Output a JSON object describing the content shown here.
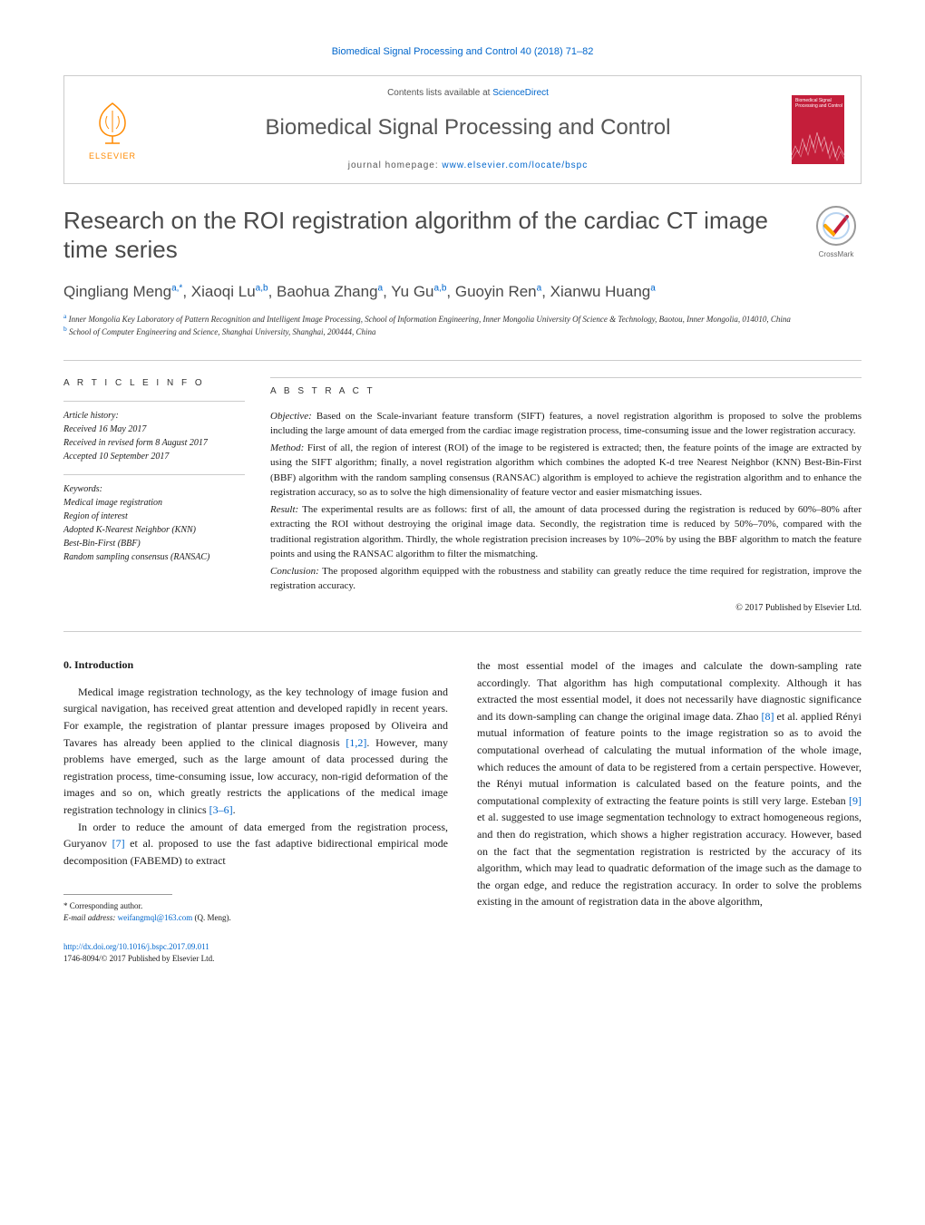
{
  "journal_citation": "Biomedical Signal Processing and Control 40 (2018) 71–82",
  "masthead": {
    "contents_prefix": "Contents lists available at ",
    "contents_link": "ScienceDirect",
    "journal_name": "Biomedical Signal Processing and Control",
    "homepage_prefix": "journal homepage: ",
    "homepage_url": "www.elsevier.com/locate/bspc",
    "elsevier_label": "ELSEVIER",
    "cover_text": "Biomedical Signal Processing and Control"
  },
  "crossmark_label": "CrossMark",
  "title": "Research on the ROI registration algorithm of the cardiac CT image time series",
  "authors": [
    {
      "name": "Qingliang Meng",
      "aff": "a,*"
    },
    {
      "name": "Xiaoqi Lu",
      "aff": "a,b"
    },
    {
      "name": "Baohua Zhang",
      "aff": "a"
    },
    {
      "name": "Yu Gu",
      "aff": "a,b"
    },
    {
      "name": "Guoyin Ren",
      "aff": "a"
    },
    {
      "name": "Xianwu Huang",
      "aff": "a"
    }
  ],
  "affiliations": {
    "a": "Inner Mongolia Key Laboratory of Pattern Recognition and Intelligent Image Processing, School of Information Engineering, Inner Mongolia University Of Science & Technology, Baotou, Inner Mongolia, 014010, China",
    "b": "School of Computer Engineering and Science, Shanghai University, Shanghai, 200444, China"
  },
  "article_info": {
    "heading": "A R T I C L E   I N F O",
    "history_label": "Article history:",
    "received": "Received 16 May 2017",
    "revised": "Received in revised form 8 August 2017",
    "accepted": "Accepted 10 September 2017",
    "keywords_label": "Keywords:",
    "keywords": [
      "Medical image registration",
      "Region of interest",
      "Adopted K-Nearest Neighbor (KNN)",
      "Best-Bin-First (BBF)",
      "Random sampling consensus (RANSAC)"
    ]
  },
  "abstract": {
    "heading": "A B S T R A C T",
    "objective_label": "Objective:",
    "objective": "Based on the Scale-invariant feature transform (SIFT) features, a novel registration algorithm is proposed to solve the problems including the large amount of data emerged from the cardiac image registration process, time-consuming issue and the lower registration accuracy.",
    "method_label": "Method:",
    "method": "First of all, the region of interest (ROI) of the image to be registered is extracted; then, the feature points of the image are extracted by using the SIFT algorithm; finally, a novel registration algorithm which combines the adopted K-d tree Nearest Neighbor (KNN) Best-Bin-First (BBF) algorithm with the random sampling consensus (RANSAC) algorithm is employed to achieve the registration algorithm and to enhance the registration accuracy, so as to solve the high dimensionality of feature vector and easier mismatching issues.",
    "result_label": "Result:",
    "result": "The experimental results are as follows: first of all, the amount of data processed during the registration is reduced by 60%–80% after extracting the ROI without destroying the original image data. Secondly, the registration time is reduced by 50%–70%, compared with the traditional registration algorithm. Thirdly, the whole registration precision increases by 10%–20% by using the BBF algorithm to match the feature points and using the RANSAC algorithm to filter the mismatching.",
    "conclusion_label": "Conclusion:",
    "conclusion": "The proposed algorithm equipped with the robustness and stability can greatly reduce the time required for registration, improve the registration accuracy.",
    "copyright": "© 2017 Published by Elsevier Ltd."
  },
  "body": {
    "section_heading": "0. Introduction",
    "col1_p1": "Medical image registration technology, as the key technology of image fusion and surgical navigation, has received great attention and developed rapidly in recent years. For example, the registration of plantar pressure images proposed by Oliveira and Tavares has already been applied to the clinical diagnosis ",
    "ref1": "[1,2]",
    "col1_p1b": ". However, many problems have emerged, such as the large amount of data processed during the registration process, time-consuming issue, low accuracy, non-rigid deformation of the images and so on, which greatly restricts the applications of the medical image registration technology in clinics ",
    "ref2": "[3–6]",
    "col1_p1c": ".",
    "col1_p2": "In order to reduce the amount of data emerged from the registration process, Guryanov ",
    "ref3": "[7]",
    "col1_p2b": " et al. proposed to use the fast adaptive bidirectional empirical mode decomposition (FABEMD) to extract",
    "col2_p1": "the most essential model of the images and calculate the down-sampling rate accordingly. That algorithm has high computational complexity. Although it has extracted the most essential model, it does not necessarily have diagnostic significance and its down-sampling can change the original image data. Zhao ",
    "ref4": "[8]",
    "col2_p1b": " et al. applied Rényi mutual information of feature points to the image registration so as to avoid the computational overhead of calculating the mutual information of the whole image, which reduces the amount of data to be registered from a certain perspective. However, the Rényi mutual information is calculated based on the feature points, and the computational complexity of extracting the feature points is still very large. Esteban ",
    "ref5": "[9]",
    "col2_p1c": " et al. suggested to use image segmentation technology to extract homogeneous regions, and then do registration, which shows a higher registration accuracy. However, based on the fact that the segmentation registration is restricted by the accuracy of its algorithm, which may lead to quadratic deformation of the image such as the damage to the organ edge, and reduce the registration accuracy. In order to solve the problems existing in the amount of registration data in the above algorithm,"
  },
  "footnote": {
    "corresponding": "Corresponding author.",
    "email_label": "E-mail address:",
    "email": "weifangmql@163.com",
    "email_suffix": "(Q. Meng)."
  },
  "footer": {
    "doi": "http://dx.doi.org/10.1016/j.bspc.2017.09.011",
    "issn_copyright": "1746-8094/© 2017 Published by Elsevier Ltd."
  },
  "colors": {
    "link": "#0066cc",
    "elsevier_orange": "#ff8a00",
    "cover_red": "#c41e3a",
    "text_gray": "#4a4a4a",
    "border": "#cccccc"
  },
  "typography": {
    "body_fontsize": 12,
    "title_fontsize": 26,
    "authors_fontsize": 17,
    "journal_title_fontsize": 24,
    "abstract_fontsize": 11,
    "footnote_fontsize": 9
  }
}
